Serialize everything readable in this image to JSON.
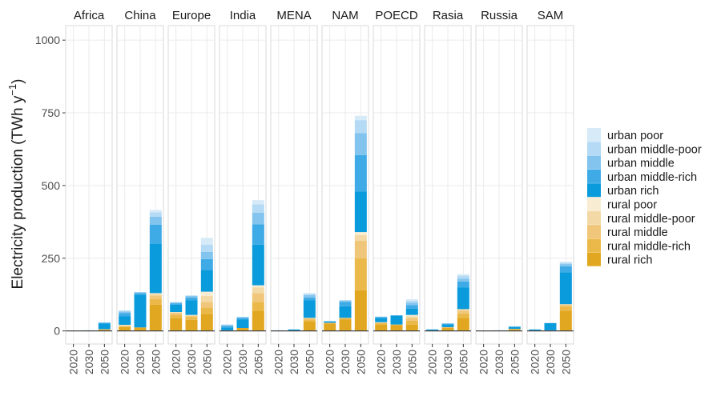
{
  "chart_data": {
    "type": "bar",
    "stacked": true,
    "faceted": true,
    "ylabel": "Electricity production (TWh y",
    "ylabel_sup": "−1",
    "ylabel_close": ")",
    "ylim": [
      -45,
      1050
    ],
    "yticks": [
      0,
      250,
      500,
      750,
      1000
    ],
    "ytick_labels": [
      "0",
      "250",
      "500",
      "750",
      "1000"
    ],
    "categories": [
      "2020",
      "2030",
      "2050"
    ],
    "grid": true,
    "legend_position": "right",
    "stack_order": [
      "rural rich",
      "rural middle-rich",
      "rural middle",
      "rural middle-poor",
      "rural poor",
      "urban rich",
      "urban middle-rich",
      "urban middle",
      "urban middle-poor",
      "urban poor"
    ],
    "legend": [
      {
        "name": "urban poor",
        "color": "#d6eaf8"
      },
      {
        "name": "urban middle-poor",
        "color": "#b4daf5"
      },
      {
        "name": "urban middle",
        "color": "#82c4ee"
      },
      {
        "name": "urban middle-rich",
        "color": "#3fabe6"
      },
      {
        "name": "urban rich",
        "color": "#0a9bdc"
      },
      {
        "name": "rural poor",
        "color": "#f8ecd2"
      },
      {
        "name": "rural middle-poor",
        "color": "#f3d9a6"
      },
      {
        "name": "rural middle",
        "color": "#f0c77a"
      },
      {
        "name": "rural middle-rich",
        "color": "#ebb94a"
      },
      {
        "name": "rural rich",
        "color": "#e2a720"
      }
    ],
    "panels": [
      {
        "title": "Africa",
        "bars": [
          [
            0,
            0,
            0,
            0,
            0,
            0,
            0,
            0,
            0,
            0
          ],
          [
            0,
            0,
            0,
            0,
            0,
            2,
            0,
            0,
            0,
            0
          ],
          [
            4,
            1,
            1,
            0,
            0,
            20,
            2,
            1,
            0,
            0
          ]
        ]
      },
      {
        "title": "China",
        "bars": [
          [
            13,
            3,
            2,
            2,
            1,
            30,
            10,
            6,
            3,
            1
          ],
          [
            12,
            0,
            0,
            0,
            0,
            113,
            5,
            3,
            1,
            0
          ],
          [
            90,
            20,
            12,
            6,
            2,
            170,
            65,
            28,
            15,
            8
          ]
        ]
      },
      {
        "title": "Europe",
        "bars": [
          [
            44,
            12,
            6,
            2,
            1,
            25,
            5,
            3,
            1,
            0
          ],
          [
            38,
            10,
            4,
            2,
            1,
            50,
            10,
            5,
            2,
            0
          ],
          [
            58,
            22,
            20,
            20,
            15,
            75,
            37,
            25,
            25,
            23
          ]
        ]
      },
      {
        "title": "India",
        "bars": [
          [
            2,
            0,
            0,
            0,
            0,
            10,
            5,
            3,
            2,
            0
          ],
          [
            10,
            0,
            0,
            0,
            0,
            30,
            5,
            3,
            0,
            0
          ],
          [
            70,
            30,
            30,
            20,
            7,
            140,
            70,
            40,
            28,
            15
          ]
        ]
      },
      {
        "title": "MENA",
        "bars": [
          [
            0,
            0,
            0,
            0,
            0,
            2,
            0,
            0,
            0,
            0
          ],
          [
            0,
            0,
            0,
            0,
            0,
            5,
            0,
            0,
            0,
            0
          ],
          [
            33,
            6,
            4,
            2,
            0,
            60,
            10,
            8,
            5,
            2
          ]
        ]
      },
      {
        "title": "NAM",
        "bars": [
          [
            25,
            2,
            1,
            0,
            0,
            5,
            0,
            0,
            0,
            0
          ],
          [
            40,
            3,
            2,
            0,
            0,
            40,
            15,
            5,
            0,
            0
          ],
          [
            140,
            110,
            60,
            20,
            10,
            140,
            125,
            75,
            45,
            15
          ]
        ]
      },
      {
        "title": "POECD",
        "bars": [
          [
            22,
            5,
            2,
            1,
            0,
            15,
            3,
            1,
            0,
            0
          ],
          [
            20,
            2,
            0,
            0,
            0,
            30,
            2,
            0,
            0,
            0
          ],
          [
            22,
            13,
            10,
            5,
            5,
            22,
            12,
            8,
            7,
            5
          ]
        ]
      },
      {
        "title": "Rasia",
        "bars": [
          [
            0,
            0,
            0,
            0,
            0,
            5,
            0,
            0,
            0,
            0
          ],
          [
            10,
            2,
            1,
            0,
            0,
            10,
            2,
            1,
            0,
            0
          ],
          [
            45,
            15,
            10,
            5,
            0,
            75,
            20,
            10,
            10,
            5
          ]
        ]
      },
      {
        "title": "Russia",
        "bars": [
          [
            0,
            0,
            0,
            0,
            0,
            0,
            0,
            0,
            0,
            0
          ],
          [
            0,
            0,
            0,
            0,
            0,
            2,
            0,
            0,
            0,
            0
          ],
          [
            5,
            2,
            0,
            0,
            0,
            6,
            2,
            1,
            0,
            0
          ]
        ]
      },
      {
        "title": "SAM",
        "bars": [
          [
            0,
            0,
            0,
            0,
            0,
            5,
            0,
            0,
            0,
            0
          ],
          [
            2,
            0,
            0,
            0,
            0,
            25,
            0,
            0,
            0,
            0
          ],
          [
            70,
            15,
            5,
            2,
            0,
            110,
            20,
            8,
            5,
            3
          ]
        ]
      }
    ]
  }
}
